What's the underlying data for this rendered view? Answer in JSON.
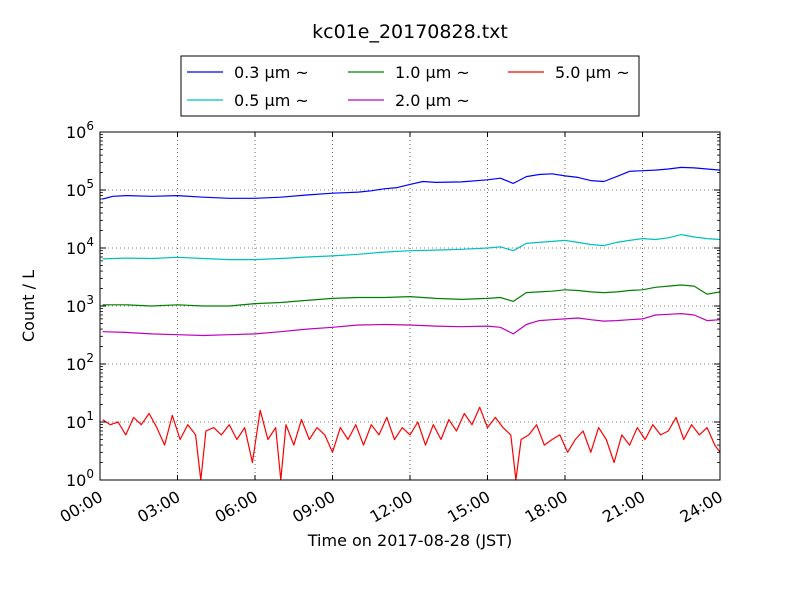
{
  "chart_data": {
    "type": "line",
    "title": "kc01e_20170828.txt",
    "xlabel": "Time on 2017-08-28 (JST)",
    "ylabel": "Count / L",
    "x_ticks": [
      "00:00",
      "03:00",
      "06:00",
      "09:00",
      "12:00",
      "15:00",
      "18:00",
      "21:00",
      "24:00"
    ],
    "y_scale": "log",
    "ylim": [
      1,
      1000000
    ],
    "y_tick_base": "10",
    "y_tick_exponents": [
      "0",
      "1",
      "2",
      "3",
      "4",
      "5",
      "6"
    ],
    "xlim_hours": [
      0,
      24
    ],
    "grid": true,
    "legend_position": "top",
    "series": [
      {
        "name": "0.3 µm ~",
        "color": "#0000ff",
        "points": [
          [
            0.1,
            70000
          ],
          [
            0.5,
            78000
          ],
          [
            1,
            80000
          ],
          [
            2,
            78000
          ],
          [
            3,
            80000
          ],
          [
            4,
            75000
          ],
          [
            5,
            72000
          ],
          [
            6,
            72000
          ],
          [
            7,
            75000
          ],
          [
            8,
            82000
          ],
          [
            9,
            88000
          ],
          [
            9.5,
            90000
          ],
          [
            10,
            92000
          ],
          [
            10.5,
            97000
          ],
          [
            11,
            105000
          ],
          [
            11.5,
            110000
          ],
          [
            12,
            125000
          ],
          [
            12.5,
            140000
          ],
          [
            13,
            135000
          ],
          [
            14,
            138000
          ],
          [
            15,
            150000
          ],
          [
            15.5,
            160000
          ],
          [
            16,
            130000
          ],
          [
            16.5,
            170000
          ],
          [
            17,
            185000
          ],
          [
            17.5,
            190000
          ],
          [
            18,
            175000
          ],
          [
            18.5,
            165000
          ],
          [
            19,
            145000
          ],
          [
            19.5,
            140000
          ],
          [
            20,
            170000
          ],
          [
            20.5,
            210000
          ],
          [
            21,
            215000
          ],
          [
            21.5,
            220000
          ],
          [
            22,
            230000
          ],
          [
            22.5,
            245000
          ],
          [
            23,
            240000
          ],
          [
            23.5,
            230000
          ],
          [
            24,
            220000
          ]
        ]
      },
      {
        "name": "0.5 µm ~",
        "color": "#00bfbf",
        "points": [
          [
            0.1,
            6500
          ],
          [
            1,
            6700
          ],
          [
            2,
            6600
          ],
          [
            3,
            6900
          ],
          [
            4,
            6600
          ],
          [
            5,
            6300
          ],
          [
            6,
            6300
          ],
          [
            7,
            6600
          ],
          [
            8,
            7000
          ],
          [
            9,
            7300
          ],
          [
            10,
            7800
          ],
          [
            11,
            8500
          ],
          [
            12,
            9000
          ],
          [
            13,
            9200
          ],
          [
            14,
            9500
          ],
          [
            15,
            10000
          ],
          [
            15.5,
            10500
          ],
          [
            16,
            9000
          ],
          [
            16.5,
            12000
          ],
          [
            17,
            12500
          ],
          [
            17.5,
            13000
          ],
          [
            18,
            13500
          ],
          [
            18.5,
            12500
          ],
          [
            19,
            11500
          ],
          [
            19.5,
            11000
          ],
          [
            20,
            12500
          ],
          [
            20.5,
            13500
          ],
          [
            21,
            14500
          ],
          [
            21.5,
            14000
          ],
          [
            22,
            15000
          ],
          [
            22.5,
            17000
          ],
          [
            23,
            15500
          ],
          [
            23.5,
            14500
          ],
          [
            24,
            14000
          ]
        ]
      },
      {
        "name": "1.0 µm ~",
        "color": "#008000",
        "points": [
          [
            0.1,
            1050
          ],
          [
            1,
            1050
          ],
          [
            2,
            1000
          ],
          [
            3,
            1050
          ],
          [
            4,
            1000
          ],
          [
            5,
            1000
          ],
          [
            6,
            1100
          ],
          [
            7,
            1150
          ],
          [
            8,
            1250
          ],
          [
            9,
            1350
          ],
          [
            10,
            1400
          ],
          [
            11,
            1400
          ],
          [
            12,
            1450
          ],
          [
            13,
            1350
          ],
          [
            14,
            1300
          ],
          [
            15,
            1350
          ],
          [
            15.5,
            1400
          ],
          [
            16,
            1200
          ],
          [
            16.5,
            1700
          ],
          [
            17,
            1750
          ],
          [
            17.5,
            1800
          ],
          [
            18,
            1900
          ],
          [
            18.5,
            1850
          ],
          [
            19,
            1750
          ],
          [
            19.5,
            1700
          ],
          [
            20,
            1750
          ],
          [
            20.5,
            1850
          ],
          [
            21,
            1900
          ],
          [
            21.5,
            2100
          ],
          [
            22,
            2200
          ],
          [
            22.5,
            2300
          ],
          [
            23,
            2200
          ],
          [
            23.5,
            1600
          ],
          [
            24,
            1750
          ]
        ]
      },
      {
        "name": "2.0 µm ~",
        "color": "#bf00bf",
        "points": [
          [
            0.1,
            360
          ],
          [
            1,
            350
          ],
          [
            2,
            330
          ],
          [
            3,
            320
          ],
          [
            4,
            310
          ],
          [
            5,
            320
          ],
          [
            6,
            330
          ],
          [
            7,
            360
          ],
          [
            8,
            400
          ],
          [
            9,
            430
          ],
          [
            10,
            470
          ],
          [
            11,
            480
          ],
          [
            12,
            470
          ],
          [
            13,
            450
          ],
          [
            14,
            440
          ],
          [
            15,
            450
          ],
          [
            15.5,
            430
          ],
          [
            16,
            330
          ],
          [
            16.5,
            480
          ],
          [
            17,
            560
          ],
          [
            17.5,
            580
          ],
          [
            18,
            600
          ],
          [
            18.5,
            620
          ],
          [
            19,
            580
          ],
          [
            19.5,
            550
          ],
          [
            20,
            560
          ],
          [
            20.5,
            580
          ],
          [
            21,
            600
          ],
          [
            21.5,
            700
          ],
          [
            22,
            720
          ],
          [
            22.5,
            740
          ],
          [
            23,
            700
          ],
          [
            23.5,
            560
          ],
          [
            24,
            580
          ]
        ]
      },
      {
        "name": "5.0 µm ~",
        "color": "#ff0000",
        "points": [
          [
            0.1,
            11
          ],
          [
            0.4,
            9
          ],
          [
            0.7,
            10
          ],
          [
            1,
            6
          ],
          [
            1.3,
            12
          ],
          [
            1.6,
            9
          ],
          [
            1.9,
            14
          ],
          [
            2.2,
            8
          ],
          [
            2.5,
            4
          ],
          [
            2.8,
            13
          ],
          [
            3.1,
            5
          ],
          [
            3.4,
            9
          ],
          [
            3.7,
            6
          ],
          [
            3.9,
            1
          ],
          [
            4.1,
            7
          ],
          [
            4.4,
            8
          ],
          [
            4.7,
            6
          ],
          [
            5,
            9
          ],
          [
            5.3,
            5
          ],
          [
            5.6,
            8
          ],
          [
            5.9,
            2
          ],
          [
            6.2,
            16
          ],
          [
            6.5,
            5
          ],
          [
            6.8,
            8
          ],
          [
            7,
            1
          ],
          [
            7.2,
            9
          ],
          [
            7.5,
            4
          ],
          [
            7.8,
            11
          ],
          [
            8.1,
            5
          ],
          [
            8.4,
            8
          ],
          [
            8.7,
            6
          ],
          [
            9,
            3
          ],
          [
            9.3,
            8
          ],
          [
            9.6,
            5
          ],
          [
            9.9,
            9
          ],
          [
            10.2,
            4
          ],
          [
            10.5,
            9
          ],
          [
            10.8,
            6
          ],
          [
            11.1,
            12
          ],
          [
            11.4,
            5
          ],
          [
            11.7,
            8
          ],
          [
            12,
            6
          ],
          [
            12.3,
            10
          ],
          [
            12.6,
            4
          ],
          [
            12.9,
            9
          ],
          [
            13.2,
            5
          ],
          [
            13.5,
            11
          ],
          [
            13.8,
            7
          ],
          [
            14.1,
            14
          ],
          [
            14.4,
            9
          ],
          [
            14.7,
            18
          ],
          [
            15,
            8
          ],
          [
            15.3,
            12
          ],
          [
            15.6,
            8
          ],
          [
            15.9,
            6
          ],
          [
            16.1,
            1
          ],
          [
            16.3,
            5
          ],
          [
            16.6,
            6
          ],
          [
            16.9,
            9
          ],
          [
            17.2,
            4
          ],
          [
            17.5,
            5
          ],
          [
            17.8,
            6
          ],
          [
            18.1,
            3
          ],
          [
            18.4,
            5
          ],
          [
            18.7,
            7
          ],
          [
            19,
            3
          ],
          [
            19.3,
            8
          ],
          [
            19.6,
            5
          ],
          [
            19.9,
            2
          ],
          [
            20.2,
            6
          ],
          [
            20.5,
            4
          ],
          [
            20.8,
            8
          ],
          [
            21.1,
            5
          ],
          [
            21.4,
            9
          ],
          [
            21.7,
            6
          ],
          [
            22,
            7
          ],
          [
            22.3,
            12
          ],
          [
            22.6,
            5
          ],
          [
            22.9,
            9
          ],
          [
            23.2,
            6
          ],
          [
            23.5,
            8
          ],
          [
            23.8,
            4
          ],
          [
            24,
            3
          ]
        ]
      }
    ]
  }
}
